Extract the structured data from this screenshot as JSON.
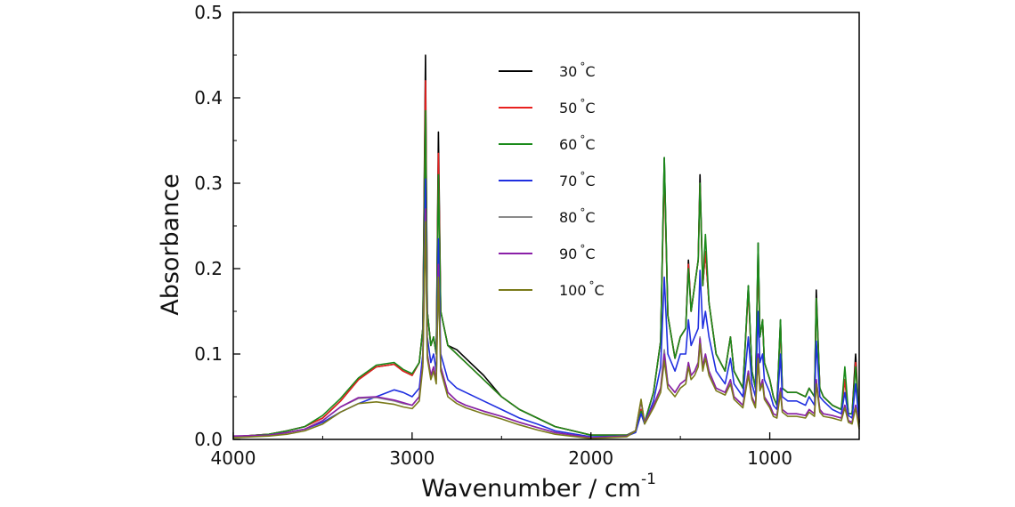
{
  "chart_data": {
    "type": "line",
    "xlabel": "Wavenumber / cm",
    "xlabel_superscript": "-1",
    "ylabel": "Absorbance",
    "xlim": [
      4000,
      500
    ],
    "ylim": [
      0,
      0.5
    ],
    "x_reversed": true,
    "x_ticks": [
      "4000",
      "3000",
      "2000",
      "1000"
    ],
    "y_ticks": [
      "0.0",
      "0.1",
      "0.2",
      "0.3",
      "0.4",
      "0.5"
    ],
    "grid": false,
    "legend_position": "top-center",
    "series": [
      {
        "name": "30 °C",
        "label_num": "30",
        "label_deg": "°",
        "label_unit": "C",
        "color": "#000000",
        "x": [
          4000,
          3800,
          3700,
          3600,
          3500,
          3400,
          3300,
          3200,
          3100,
          3050,
          3000,
          2960,
          2940,
          2925,
          2915,
          2895,
          2880,
          2865,
          2853,
          2840,
          2800,
          2750,
          2700,
          2600,
          2500,
          2400,
          2300,
          2200,
          2000,
          1800,
          1750,
          1720,
          1700,
          1650,
          1610,
          1590,
          1570,
          1530,
          1500,
          1470,
          1455,
          1440,
          1420,
          1400,
          1390,
          1375,
          1360,
          1340,
          1300,
          1250,
          1220,
          1200,
          1150,
          1120,
          1100,
          1080,
          1065,
          1055,
          1040,
          1030,
          1000,
          980,
          960,
          940,
          930,
          900,
          850,
          800,
          780,
          750,
          740,
          720,
          700,
          650,
          600,
          580,
          560,
          540,
          520,
          500
        ],
        "y": [
          0.003,
          0.006,
          0.01,
          0.015,
          0.025,
          0.045,
          0.07,
          0.085,
          0.088,
          0.08,
          0.075,
          0.09,
          0.13,
          0.45,
          0.15,
          0.11,
          0.12,
          0.1,
          0.36,
          0.15,
          0.11,
          0.105,
          0.095,
          0.075,
          0.05,
          0.035,
          0.025,
          0.015,
          0.005,
          0.005,
          0.01,
          0.035,
          0.02,
          0.055,
          0.115,
          0.33,
          0.145,
          0.095,
          0.12,
          0.13,
          0.21,
          0.15,
          0.18,
          0.21,
          0.31,
          0.18,
          0.22,
          0.16,
          0.1,
          0.08,
          0.12,
          0.08,
          0.06,
          0.18,
          0.08,
          0.06,
          0.23,
          0.12,
          0.14,
          0.09,
          0.07,
          0.05,
          0.04,
          0.14,
          0.06,
          0.055,
          0.055,
          0.05,
          0.06,
          0.05,
          0.175,
          0.06,
          0.05,
          0.04,
          0.035,
          0.07,
          0.03,
          0.03,
          0.1,
          0.02
        ]
      },
      {
        "name": "50 °C",
        "label_num": "50",
        "label_deg": "°",
        "label_unit": "C",
        "color": "#e8211f",
        "x": [
          4000,
          3800,
          3700,
          3600,
          3500,
          3400,
          3300,
          3200,
          3100,
          3050,
          3000,
          2960,
          2940,
          2925,
          2915,
          2895,
          2880,
          2865,
          2853,
          2840,
          2800,
          2750,
          2700,
          2600,
          2500,
          2400,
          2300,
          2200,
          2000,
          1800,
          1750,
          1720,
          1700,
          1650,
          1610,
          1590,
          1570,
          1530,
          1500,
          1470,
          1455,
          1440,
          1420,
          1400,
          1390,
          1375,
          1360,
          1340,
          1300,
          1250,
          1220,
          1200,
          1150,
          1120,
          1100,
          1080,
          1065,
          1055,
          1040,
          1030,
          1000,
          980,
          960,
          940,
          930,
          900,
          850,
          800,
          780,
          750,
          740,
          720,
          700,
          650,
          600,
          580,
          560,
          540,
          520,
          500
        ],
        "y": [
          0.003,
          0.006,
          0.01,
          0.015,
          0.025,
          0.045,
          0.07,
          0.085,
          0.088,
          0.08,
          0.075,
          0.09,
          0.13,
          0.42,
          0.15,
          0.11,
          0.12,
          0.1,
          0.335,
          0.15,
          0.11,
          0.1,
          0.09,
          0.07,
          0.05,
          0.035,
          0.025,
          0.015,
          0.005,
          0.005,
          0.01,
          0.035,
          0.02,
          0.055,
          0.115,
          0.315,
          0.145,
          0.095,
          0.12,
          0.13,
          0.205,
          0.15,
          0.18,
          0.21,
          0.3,
          0.18,
          0.22,
          0.16,
          0.1,
          0.08,
          0.12,
          0.08,
          0.06,
          0.175,
          0.08,
          0.06,
          0.215,
          0.12,
          0.14,
          0.09,
          0.07,
          0.05,
          0.04,
          0.135,
          0.06,
          0.055,
          0.055,
          0.05,
          0.06,
          0.05,
          0.165,
          0.06,
          0.05,
          0.04,
          0.035,
          0.07,
          0.03,
          0.03,
          0.09,
          0.02
        ]
      },
      {
        "name": "60 °C",
        "label_num": "60",
        "label_deg": "°",
        "label_unit": "C",
        "color": "#1a8a1a",
        "x": [
          4000,
          3800,
          3700,
          3600,
          3500,
          3400,
          3300,
          3200,
          3100,
          3050,
          3000,
          2960,
          2940,
          2925,
          2915,
          2895,
          2880,
          2865,
          2853,
          2840,
          2800,
          2750,
          2700,
          2600,
          2500,
          2400,
          2300,
          2200,
          2000,
          1800,
          1750,
          1720,
          1700,
          1650,
          1610,
          1590,
          1570,
          1530,
          1500,
          1470,
          1455,
          1440,
          1420,
          1400,
          1390,
          1375,
          1360,
          1340,
          1300,
          1250,
          1220,
          1200,
          1150,
          1120,
          1100,
          1080,
          1065,
          1055,
          1040,
          1030,
          1000,
          980,
          960,
          940,
          930,
          900,
          850,
          800,
          780,
          750,
          740,
          720,
          700,
          650,
          600,
          580,
          560,
          540,
          520,
          500
        ],
        "y": [
          0.003,
          0.006,
          0.01,
          0.015,
          0.028,
          0.048,
          0.072,
          0.087,
          0.09,
          0.082,
          0.077,
          0.09,
          0.13,
          0.385,
          0.15,
          0.11,
          0.12,
          0.1,
          0.31,
          0.15,
          0.11,
          0.1,
          0.09,
          0.07,
          0.05,
          0.035,
          0.025,
          0.015,
          0.005,
          0.005,
          0.01,
          0.033,
          0.02,
          0.055,
          0.115,
          0.33,
          0.145,
          0.095,
          0.12,
          0.13,
          0.2,
          0.15,
          0.18,
          0.21,
          0.3,
          0.18,
          0.24,
          0.16,
          0.1,
          0.08,
          0.12,
          0.08,
          0.06,
          0.18,
          0.08,
          0.06,
          0.23,
          0.12,
          0.14,
          0.09,
          0.07,
          0.05,
          0.04,
          0.14,
          0.06,
          0.055,
          0.055,
          0.05,
          0.06,
          0.05,
          0.165,
          0.06,
          0.05,
          0.04,
          0.035,
          0.085,
          0.03,
          0.03,
          0.085,
          0.02
        ]
      },
      {
        "name": "70 °C",
        "label_num": "70",
        "label_deg": "°",
        "label_unit": "C",
        "color": "#1f2fe0",
        "x": [
          4000,
          3800,
          3700,
          3600,
          3500,
          3400,
          3300,
          3200,
          3100,
          3050,
          3000,
          2960,
          2940,
          2925,
          2915,
          2895,
          2880,
          2865,
          2853,
          2840,
          2800,
          2750,
          2700,
          2600,
          2500,
          2400,
          2300,
          2200,
          2000,
          1800,
          1750,
          1720,
          1700,
          1650,
          1610,
          1590,
          1570,
          1530,
          1500,
          1470,
          1455,
          1440,
          1420,
          1400,
          1390,
          1375,
          1360,
          1340,
          1300,
          1250,
          1220,
          1200,
          1150,
          1120,
          1100,
          1080,
          1065,
          1055,
          1040,
          1030,
          1000,
          980,
          960,
          940,
          930,
          900,
          850,
          800,
          780,
          750,
          740,
          720,
          700,
          650,
          600,
          580,
          560,
          540,
          520,
          500
        ],
        "y": [
          0.003,
          0.005,
          0.008,
          0.012,
          0.02,
          0.032,
          0.042,
          0.05,
          0.058,
          0.055,
          0.05,
          0.06,
          0.1,
          0.305,
          0.12,
          0.09,
          0.1,
          0.08,
          0.235,
          0.1,
          0.07,
          0.06,
          0.055,
          0.045,
          0.035,
          0.025,
          0.018,
          0.01,
          0.003,
          0.004,
          0.008,
          0.03,
          0.018,
          0.045,
          0.085,
          0.19,
          0.1,
          0.08,
          0.1,
          0.1,
          0.14,
          0.11,
          0.12,
          0.13,
          0.198,
          0.13,
          0.15,
          0.12,
          0.08,
          0.065,
          0.095,
          0.065,
          0.05,
          0.12,
          0.065,
          0.05,
          0.15,
          0.09,
          0.1,
          0.07,
          0.055,
          0.04,
          0.035,
          0.1,
          0.05,
          0.045,
          0.045,
          0.04,
          0.05,
          0.04,
          0.115,
          0.05,
          0.045,
          0.035,
          0.03,
          0.055,
          0.028,
          0.025,
          0.065,
          0.018
        ]
      },
      {
        "name": "80 °C",
        "label_num": "80",
        "label_deg": "°",
        "label_unit": "C",
        "color": "#8a8a8a",
        "x": [
          4000,
          3800,
          3700,
          3600,
          3500,
          3400,
          3300,
          3200,
          3100,
          3050,
          3000,
          2960,
          2940,
          2925,
          2915,
          2895,
          2880,
          2865,
          2853,
          2840,
          2800,
          2750,
          2700,
          2600,
          2500,
          2400,
          2300,
          2200,
          2000,
          1800,
          1750,
          1720,
          1700,
          1650,
          1610,
          1590,
          1570,
          1530,
          1500,
          1470,
          1455,
          1440,
          1420,
          1400,
          1390,
          1375,
          1360,
          1340,
          1300,
          1250,
          1220,
          1200,
          1150,
          1120,
          1100,
          1080,
          1065,
          1055,
          1040,
          1030,
          1000,
          980,
          960,
          940,
          930,
          900,
          850,
          800,
          780,
          750,
          740,
          720,
          700,
          650,
          600,
          580,
          560,
          540,
          520,
          500
        ],
        "y": [
          0.003,
          0.005,
          0.008,
          0.012,
          0.022,
          0.038,
          0.048,
          0.049,
          0.045,
          0.042,
          0.04,
          0.05,
          0.09,
          0.265,
          0.1,
          0.075,
          0.085,
          0.07,
          0.2,
          0.085,
          0.055,
          0.045,
          0.04,
          0.033,
          0.027,
          0.02,
          0.014,
          0.008,
          0.002,
          0.004,
          0.01,
          0.045,
          0.02,
          0.04,
          0.06,
          0.105,
          0.065,
          0.055,
          0.065,
          0.07,
          0.09,
          0.075,
          0.08,
          0.09,
          0.12,
          0.085,
          0.1,
          0.08,
          0.06,
          0.055,
          0.07,
          0.05,
          0.04,
          0.08,
          0.05,
          0.04,
          0.1,
          0.06,
          0.07,
          0.05,
          0.04,
          0.03,
          0.028,
          0.06,
          0.035,
          0.03,
          0.03,
          0.028,
          0.035,
          0.03,
          0.07,
          0.035,
          0.03,
          0.028,
          0.025,
          0.04,
          0.022,
          0.02,
          0.04,
          0.015
        ]
      },
      {
        "name": "90 °C",
        "label_num": "90",
        "label_deg": "°",
        "label_unit": "C",
        "color": "#8a1fa8",
        "x": [
          4000,
          3800,
          3700,
          3600,
          3500,
          3400,
          3300,
          3200,
          3100,
          3050,
          3000,
          2960,
          2940,
          2925,
          2915,
          2895,
          2880,
          2865,
          2853,
          2840,
          2800,
          2750,
          2700,
          2600,
          2500,
          2400,
          2300,
          2200,
          2000,
          1800,
          1750,
          1720,
          1700,
          1650,
          1610,
          1590,
          1570,
          1530,
          1500,
          1470,
          1455,
          1440,
          1420,
          1400,
          1390,
          1375,
          1360,
          1340,
          1300,
          1250,
          1220,
          1200,
          1150,
          1120,
          1100,
          1080,
          1065,
          1055,
          1040,
          1030,
          1000,
          980,
          960,
          940,
          930,
          900,
          850,
          800,
          780,
          750,
          740,
          720,
          700,
          650,
          600,
          580,
          560,
          540,
          520,
          500
        ],
        "y": [
          0.004,
          0.005,
          0.008,
          0.012,
          0.022,
          0.038,
          0.049,
          0.05,
          0.046,
          0.043,
          0.04,
          0.05,
          0.09,
          0.27,
          0.1,
          0.075,
          0.085,
          0.07,
          0.205,
          0.085,
          0.055,
          0.045,
          0.04,
          0.033,
          0.027,
          0.02,
          0.014,
          0.008,
          0.002,
          0.004,
          0.01,
          0.045,
          0.02,
          0.04,
          0.06,
          0.1,
          0.065,
          0.055,
          0.065,
          0.07,
          0.09,
          0.075,
          0.08,
          0.09,
          0.118,
          0.085,
          0.1,
          0.08,
          0.06,
          0.055,
          0.07,
          0.05,
          0.04,
          0.08,
          0.05,
          0.04,
          0.1,
          0.06,
          0.07,
          0.05,
          0.04,
          0.03,
          0.028,
          0.06,
          0.035,
          0.03,
          0.03,
          0.028,
          0.035,
          0.03,
          0.07,
          0.035,
          0.03,
          0.028,
          0.025,
          0.04,
          0.022,
          0.02,
          0.04,
          0.015
        ]
      },
      {
        "name": "100 °C",
        "label_num": "100",
        "label_deg": "°",
        "label_unit": "C",
        "color": "#7a7a1a",
        "x": [
          4000,
          3800,
          3700,
          3600,
          3500,
          3400,
          3300,
          3200,
          3100,
          3050,
          3000,
          2960,
          2940,
          2925,
          2915,
          2895,
          2880,
          2865,
          2853,
          2840,
          2800,
          2750,
          2700,
          2600,
          2500,
          2400,
          2300,
          2200,
          2000,
          1800,
          1750,
          1720,
          1700,
          1650,
          1610,
          1590,
          1570,
          1530,
          1500,
          1470,
          1455,
          1440,
          1420,
          1400,
          1390,
          1375,
          1360,
          1340,
          1300,
          1250,
          1220,
          1200,
          1150,
          1120,
          1100,
          1080,
          1065,
          1055,
          1040,
          1030,
          1000,
          980,
          960,
          940,
          930,
          900,
          850,
          800,
          780,
          750,
          740,
          720,
          700,
          650,
          600,
          580,
          560,
          540,
          520,
          500
        ],
        "y": [
          0.002,
          0.004,
          0.006,
          0.01,
          0.018,
          0.032,
          0.042,
          0.044,
          0.041,
          0.038,
          0.036,
          0.045,
          0.085,
          0.255,
          0.095,
          0.07,
          0.08,
          0.065,
          0.19,
          0.08,
          0.05,
          0.042,
          0.037,
          0.03,
          0.024,
          0.017,
          0.011,
          0.006,
          0.001,
          0.003,
          0.01,
          0.047,
          0.018,
          0.037,
          0.055,
          0.092,
          0.06,
          0.05,
          0.06,
          0.065,
          0.085,
          0.07,
          0.075,
          0.085,
          0.112,
          0.08,
          0.095,
          0.075,
          0.057,
          0.052,
          0.065,
          0.047,
          0.037,
          0.075,
          0.047,
          0.037,
          0.095,
          0.057,
          0.065,
          0.047,
          0.037,
          0.027,
          0.025,
          0.055,
          0.032,
          0.027,
          0.027,
          0.025,
          0.032,
          0.027,
          0.065,
          0.032,
          0.027,
          0.025,
          0.022,
          0.037,
          0.02,
          0.018,
          0.037,
          0.012
        ]
      }
    ]
  }
}
